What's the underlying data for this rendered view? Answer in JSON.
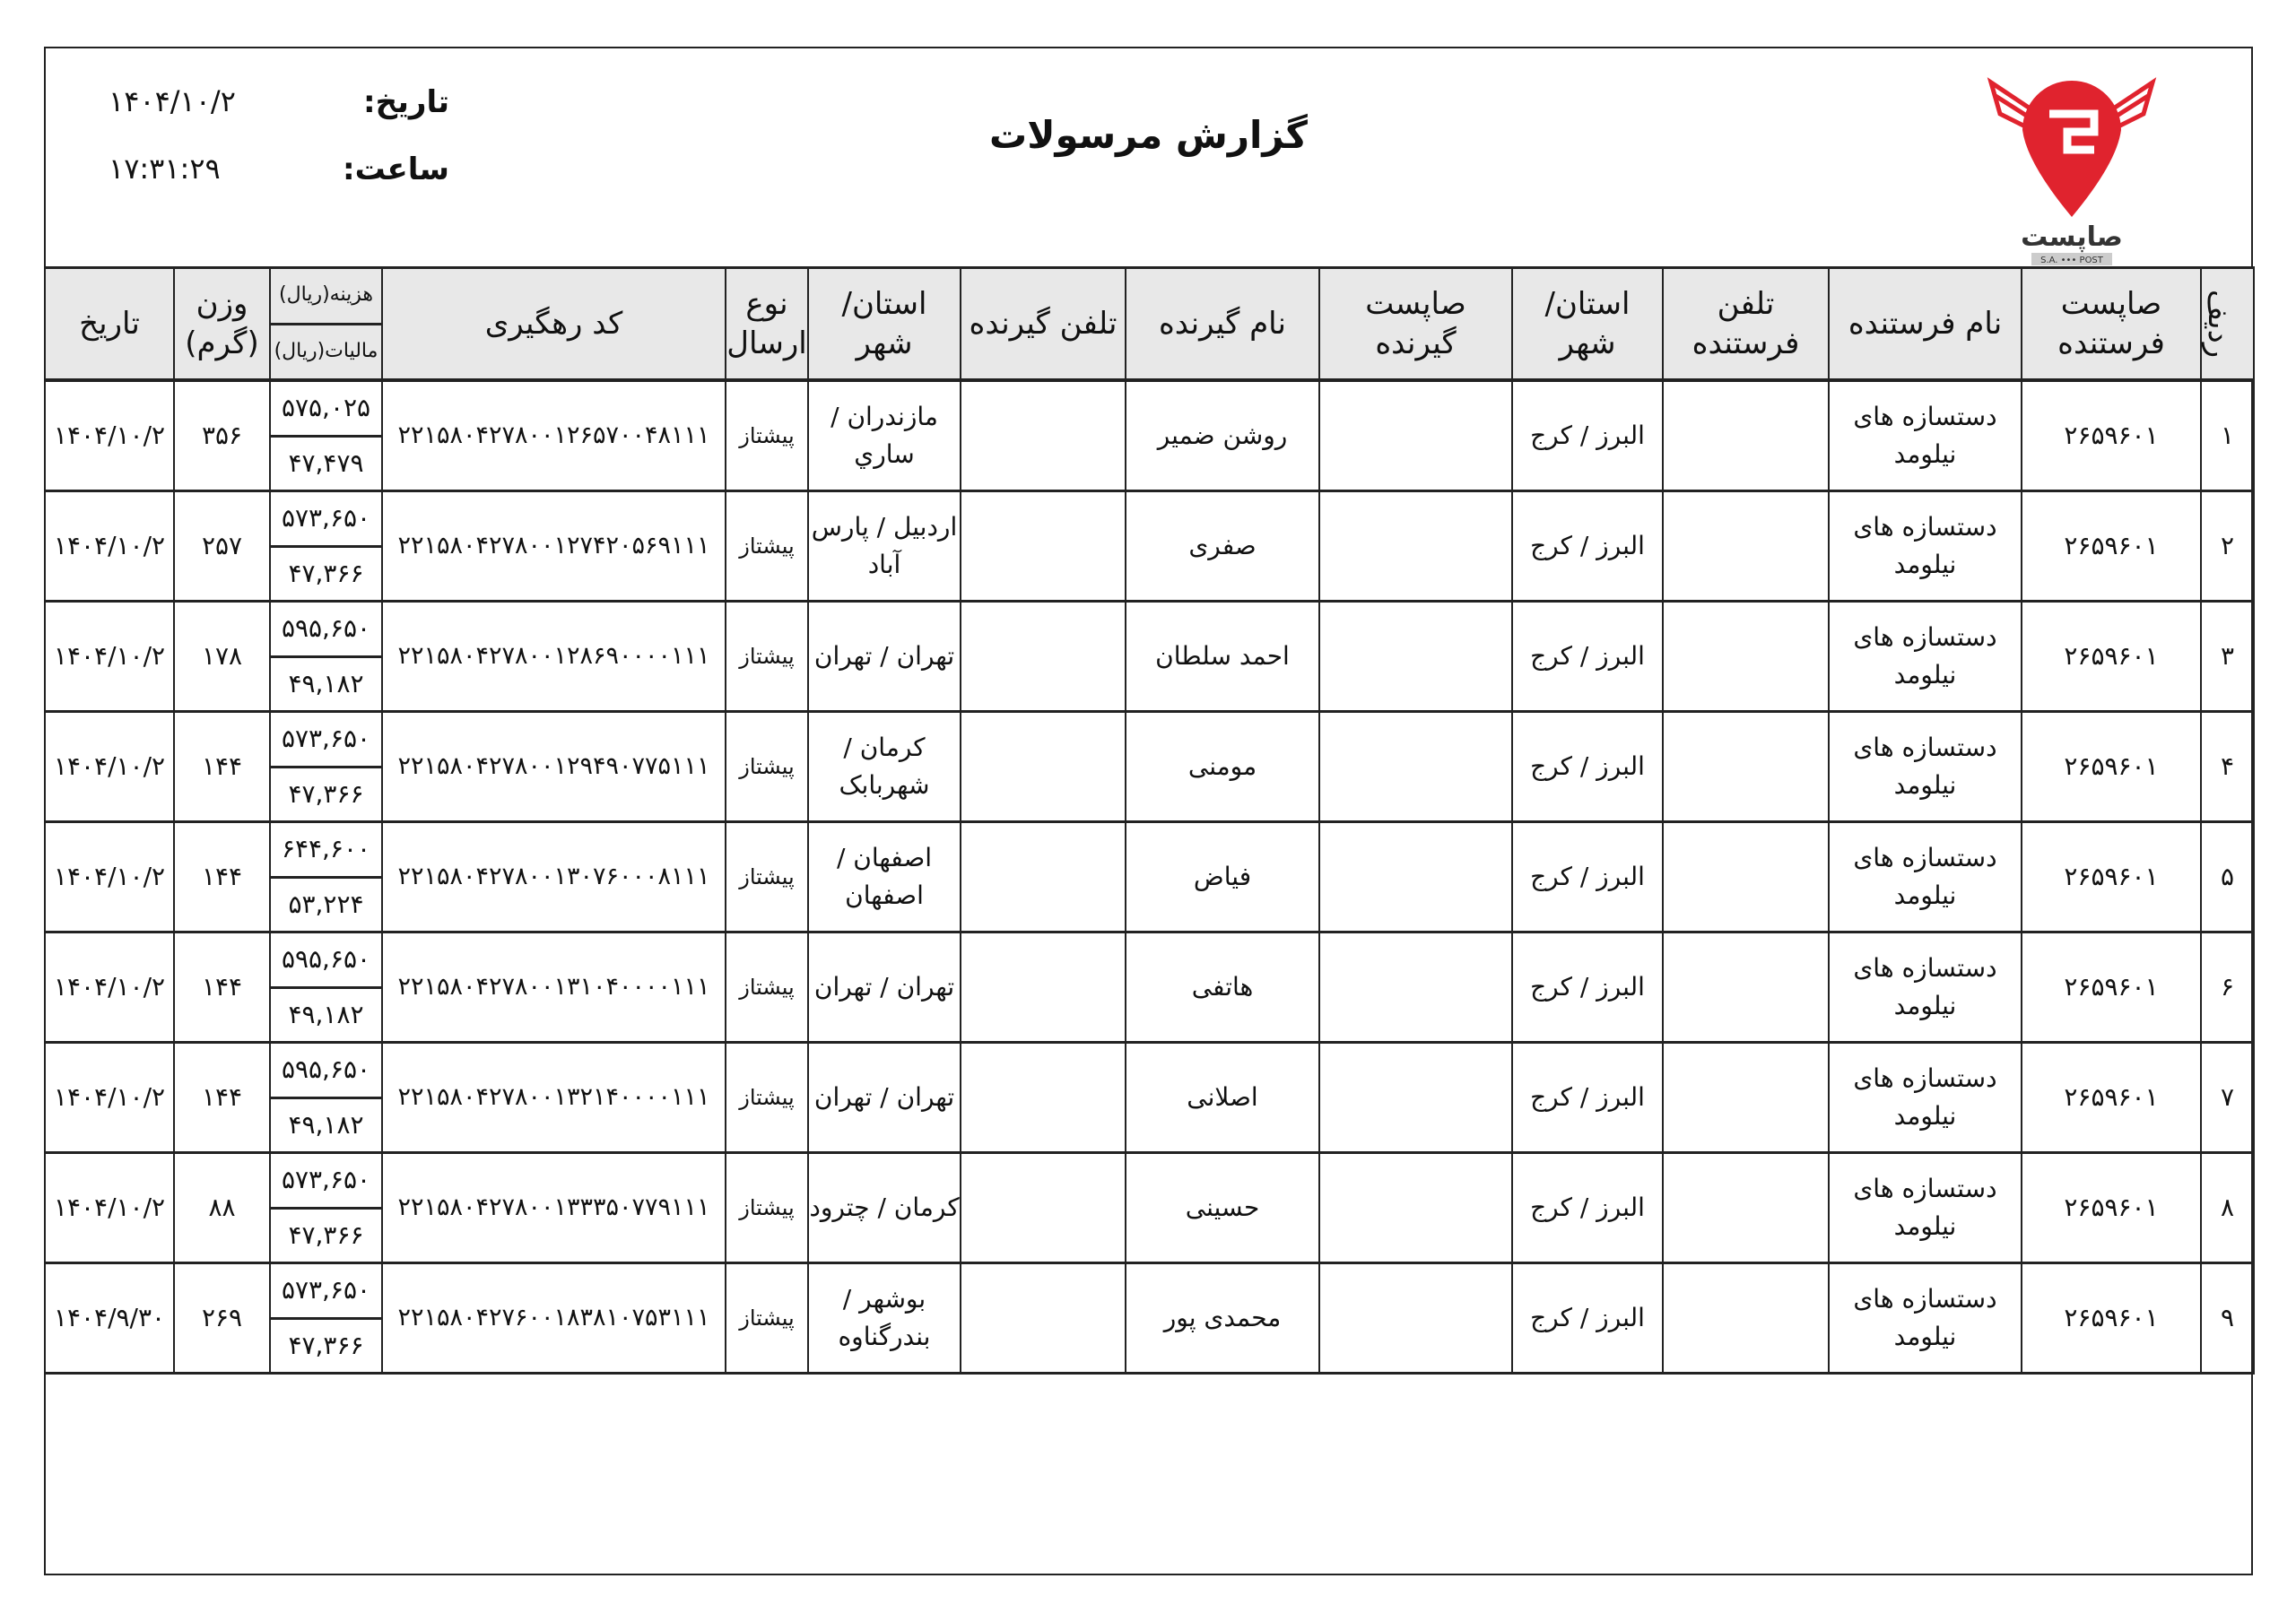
{
  "report": {
    "title": "گزارش مرسولات",
    "date_label": "تاریخ:",
    "date_value": "۱۴۰۴/۱۰/۲",
    "time_label": "ساعت:",
    "time_value": "۱۷:۳۱:۲۹",
    "logo": {
      "text": "صاپست",
      "subtext": "S.A. POST",
      "color": "#e0232e"
    }
  },
  "table": {
    "headers": {
      "row": "ردیف",
      "sender_sapost": "صاپست فرستنده",
      "sender_name": "نام فرستنده",
      "sender_phone": "تلفن فرستنده",
      "sender_city": "استان/ شهر",
      "receiver_sapost": "صاپست گیرنده",
      "receiver_name": "نام گیرنده",
      "receiver_phone": "تلفن گیرنده",
      "receiver_city": "استان/ شهر",
      "type": "نوع ارسال",
      "tracking": "کد رهگیری",
      "cost": "هزینه(ریال)",
      "tax": "مالیات(ریال)",
      "weight": "وزن (گرم)",
      "date": "تاریخ"
    },
    "rows": [
      {
        "row": "۱",
        "sender_sapost": "۲۶۵۹۶۰۱",
        "sender_name": "دستسازه های نیلومد",
        "sender_phone": "",
        "sender_city": "البرز / کرج",
        "receiver_sapost": "",
        "receiver_name": "روشن ضمیر",
        "receiver_phone": "",
        "receiver_city": "مازندران / ساري",
        "type": "پیشتاز",
        "tracking": "۲۲۱۵۸۰۴۲۷۸۰۰۱۲۶۵۷۰۰۴۸۱۱۱",
        "cost": "۵۷۵,۰۲۵",
        "tax": "۴۷,۴۷۹",
        "weight": "۳۵۶",
        "date": "۱۴۰۴/۱۰/۲"
      },
      {
        "row": "۲",
        "sender_sapost": "۲۶۵۹۶۰۱",
        "sender_name": "دستسازه های نیلومد",
        "sender_phone": "",
        "sender_city": "البرز / کرج",
        "receiver_sapost": "",
        "receiver_name": "صفری",
        "receiver_phone": "",
        "receiver_city": "اردبیل / پارس آباد",
        "type": "پیشتاز",
        "tracking": "۲۲۱۵۸۰۴۲۷۸۰۰۱۲۷۴۲۰۵۶۹۱۱۱",
        "cost": "۵۷۳,۶۵۰",
        "tax": "۴۷,۳۶۶",
        "weight": "۲۵۷",
        "date": "۱۴۰۴/۱۰/۲"
      },
      {
        "row": "۳",
        "sender_sapost": "۲۶۵۹۶۰۱",
        "sender_name": "دستسازه های نیلومد",
        "sender_phone": "",
        "sender_city": "البرز / کرج",
        "receiver_sapost": "",
        "receiver_name": "احمد سلطان",
        "receiver_phone": "",
        "receiver_city": "تهران / تهران",
        "type": "پیشتاز",
        "tracking": "۲۲۱۵۸۰۴۲۷۸۰۰۱۲۸۶۹۰۰۰۰۱۱۱",
        "cost": "۵۹۵,۶۵۰",
        "tax": "۴۹,۱۸۲",
        "weight": "۱۷۸",
        "date": "۱۴۰۴/۱۰/۲"
      },
      {
        "row": "۴",
        "sender_sapost": "۲۶۵۹۶۰۱",
        "sender_name": "دستسازه های نیلومد",
        "sender_phone": "",
        "sender_city": "البرز / کرج",
        "receiver_sapost": "",
        "receiver_name": "مومنی",
        "receiver_phone": "",
        "receiver_city": "کرمان / شهربابک",
        "type": "پیشتاز",
        "tracking": "۲۲۱۵۸۰۴۲۷۸۰۰۱۲۹۴۹۰۷۷۵۱۱۱",
        "cost": "۵۷۳,۶۵۰",
        "tax": "۴۷,۳۶۶",
        "weight": "۱۴۴",
        "date": "۱۴۰۴/۱۰/۲"
      },
      {
        "row": "۵",
        "sender_sapost": "۲۶۵۹۶۰۱",
        "sender_name": "دستسازه های نیلومد",
        "sender_phone": "",
        "sender_city": "البرز / کرج",
        "receiver_sapost": "",
        "receiver_name": "فیاض",
        "receiver_phone": "",
        "receiver_city": "اصفهان / اصفهان",
        "type": "پیشتاز",
        "tracking": "۲۲۱۵۸۰۴۲۷۸۰۰۱۳۰۷۶۰۰۰۸۱۱۱",
        "cost": "۶۴۴,۶۰۰",
        "tax": "۵۳,۲۲۴",
        "weight": "۱۴۴",
        "date": "۱۴۰۴/۱۰/۲"
      },
      {
        "row": "۶",
        "sender_sapost": "۲۶۵۹۶۰۱",
        "sender_name": "دستسازه های نیلومد",
        "sender_phone": "",
        "sender_city": "البرز / کرج",
        "receiver_sapost": "",
        "receiver_name": "هاتفی",
        "receiver_phone": "",
        "receiver_city": "تهران / تهران",
        "type": "پیشتاز",
        "tracking": "۲۲۱۵۸۰۴۲۷۸۰۰۱۳۱۰۴۰۰۰۰۱۱۱",
        "cost": "۵۹۵,۶۵۰",
        "tax": "۴۹,۱۸۲",
        "weight": "۱۴۴",
        "date": "۱۴۰۴/۱۰/۲"
      },
      {
        "row": "۷",
        "sender_sapost": "۲۶۵۹۶۰۱",
        "sender_name": "دستسازه های نیلومد",
        "sender_phone": "",
        "sender_city": "البرز / کرج",
        "receiver_sapost": "",
        "receiver_name": "اصلانی",
        "receiver_phone": "",
        "receiver_city": "تهران / تهران",
        "type": "پیشتاز",
        "tracking": "۲۲۱۵۸۰۴۲۷۸۰۰۱۳۲۱۴۰۰۰۰۱۱۱",
        "cost": "۵۹۵,۶۵۰",
        "tax": "۴۹,۱۸۲",
        "weight": "۱۴۴",
        "date": "۱۴۰۴/۱۰/۲"
      },
      {
        "row": "۸",
        "sender_sapost": "۲۶۵۹۶۰۱",
        "sender_name": "دستسازه های نیلومد",
        "sender_phone": "",
        "sender_city": "البرز / کرج",
        "receiver_sapost": "",
        "receiver_name": "حسینی",
        "receiver_phone": "",
        "receiver_city": "کرمان / چترود",
        "type": "پیشتاز",
        "tracking": "۲۲۱۵۸۰۴۲۷۸۰۰۱۳۳۳۵۰۷۷۹۱۱۱",
        "cost": "۵۷۳,۶۵۰",
        "tax": "۴۷,۳۶۶",
        "weight": "۸۸",
        "date": "۱۴۰۴/۱۰/۲"
      },
      {
        "row": "۹",
        "sender_sapost": "۲۶۵۹۶۰۱",
        "sender_name": "دستسازه های نیلومد",
        "sender_phone": "",
        "sender_city": "البرز / کرج",
        "receiver_sapost": "",
        "receiver_name": "محمدی پور",
        "receiver_phone": "",
        "receiver_city": "بوشهر / بندرگناوه",
        "type": "پیشتاز",
        "tracking": "۲۲۱۵۸۰۴۲۷۶۰۰۱۸۳۸۱۰۷۵۳۱۱۱",
        "cost": "۵۷۳,۶۵۰",
        "tax": "۴۷,۳۶۶",
        "weight": "۲۶۹",
        "date": "۱۴۰۴/۹/۳۰"
      }
    ]
  }
}
